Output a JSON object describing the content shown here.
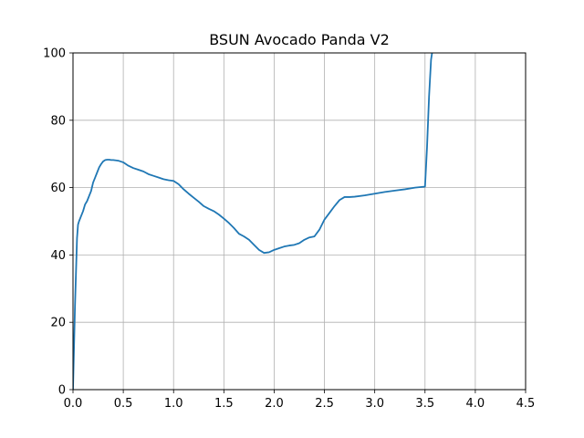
{
  "chart_data": {
    "type": "line",
    "title": "BSUN Avocado Panda V2",
    "xlabel": "",
    "ylabel": "",
    "xlim": [
      0,
      4.5
    ],
    "ylim": [
      0,
      100
    ],
    "xticks": [
      0.0,
      0.5,
      1.0,
      1.5,
      2.0,
      2.5,
      3.0,
      3.5,
      4.0,
      4.5
    ],
    "xtick_labels": [
      "0.0",
      "0.5",
      "1.0",
      "1.5",
      "2.0",
      "2.5",
      "3.0",
      "3.5",
      "4.0",
      "4.5"
    ],
    "yticks": [
      0,
      20,
      40,
      60,
      80,
      100
    ],
    "ytick_labels": [
      "0",
      "20",
      "40",
      "60",
      "80",
      "100"
    ],
    "grid": true,
    "colors": {
      "line": "#1f77b4",
      "grid": "#b0b0b0",
      "axes": "#000000"
    },
    "series": [
      {
        "x": [
          0.0,
          0.02,
          0.04,
          0.05,
          0.06,
          0.08,
          0.1,
          0.12,
          0.14,
          0.16,
          0.18,
          0.2,
          0.22,
          0.24,
          0.26,
          0.28,
          0.3,
          0.32,
          0.34,
          0.36,
          0.38,
          0.4,
          0.45,
          0.5,
          0.55,
          0.6,
          0.65,
          0.7,
          0.75,
          0.8,
          0.85,
          0.9,
          0.95,
          1.0,
          1.05,
          1.1,
          1.15,
          1.2,
          1.25,
          1.3,
          1.35,
          1.4,
          1.45,
          1.5,
          1.55,
          1.6,
          1.65,
          1.7,
          1.75,
          1.8,
          1.85,
          1.9,
          1.95,
          2.0,
          2.05,
          2.1,
          2.15,
          2.2,
          2.25,
          2.3,
          2.35,
          2.4,
          2.45,
          2.5,
          2.55,
          2.6,
          2.65,
          2.7,
          2.75,
          2.8,
          2.9,
          3.0,
          3.1,
          3.2,
          3.3,
          3.4,
          3.5,
          3.52,
          3.54,
          3.56,
          3.58
        ],
        "y": [
          0,
          25,
          45,
          49,
          50,
          51.5,
          53,
          55,
          56,
          57.5,
          59,
          61.5,
          63,
          64.5,
          66,
          67,
          67.8,
          68.2,
          68.3,
          68.3,
          68.2,
          68.2,
          68,
          67.5,
          66.5,
          65.8,
          65.3,
          64.8,
          64,
          63.5,
          63,
          62.5,
          62.2,
          62,
          61,
          59.5,
          58.2,
          57,
          55.8,
          54.5,
          53.7,
          53,
          52,
          50.8,
          49.5,
          48,
          46.3,
          45.5,
          44.5,
          43,
          41.5,
          40.6,
          40.8,
          41.5,
          42,
          42.5,
          42.8,
          43,
          43.5,
          44.5,
          45.2,
          45.5,
          47.5,
          50.5,
          52.5,
          54.5,
          56.3,
          57.2,
          57.2,
          57.3,
          57.7,
          58.2,
          58.7,
          59.1,
          59.5,
          60,
          60.3,
          72,
          87,
          98,
          102
        ]
      }
    ]
  }
}
